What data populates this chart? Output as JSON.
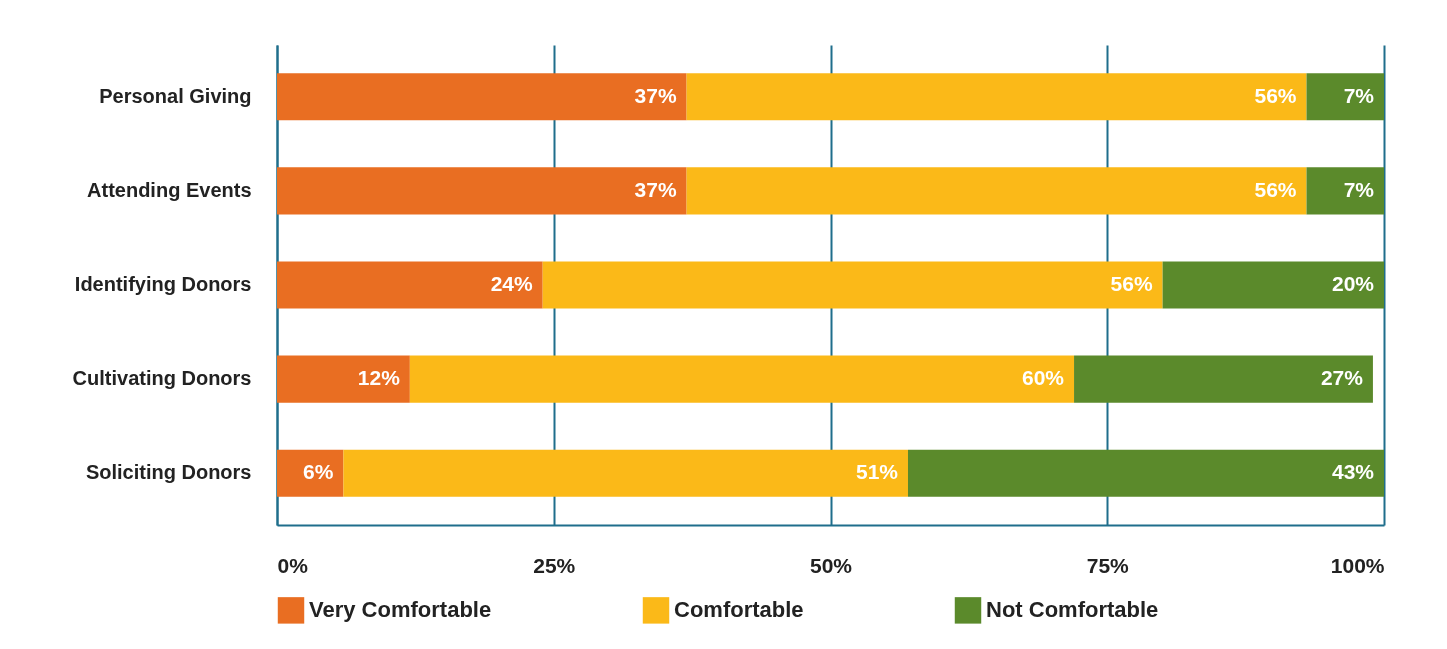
{
  "chart_data": {
    "type": "bar",
    "orientation": "horizontal",
    "stacked": true,
    "categories": [
      "Personal Giving",
      "Attending Events",
      "Identifying Donors",
      "Cultivating Donors",
      "Soliciting Donors"
    ],
    "series": [
      {
        "name": "Very Comfortable",
        "color": "#e96e22",
        "values": [
          37,
          37,
          24,
          12,
          6
        ],
        "value_labels": [
          "37%",
          "37%",
          "24%",
          "12%",
          "6%"
        ]
      },
      {
        "name": "Comfortable",
        "color": "#fbb918",
        "values": [
          56,
          56,
          56,
          60,
          51
        ],
        "value_labels": [
          "56%",
          "56%",
          "56%",
          "60%",
          "51%"
        ]
      },
      {
        "name": "Not Comfortable",
        "color": "#5b8a2b",
        "values": [
          7,
          7,
          20,
          27,
          43
        ],
        "value_labels": [
          "7%",
          "7%",
          "20%",
          "27%",
          "43%"
        ]
      }
    ],
    "xlim": [
      0,
      100
    ],
    "xticks": [
      {
        "value": 0,
        "label": "0%"
      },
      {
        "value": 25,
        "label": "25%"
      },
      {
        "value": 50,
        "label": "50%"
      },
      {
        "value": 75,
        "label": "75%"
      },
      {
        "value": 100,
        "label": "100%"
      }
    ],
    "grid": "x",
    "legend": "bottom"
  }
}
